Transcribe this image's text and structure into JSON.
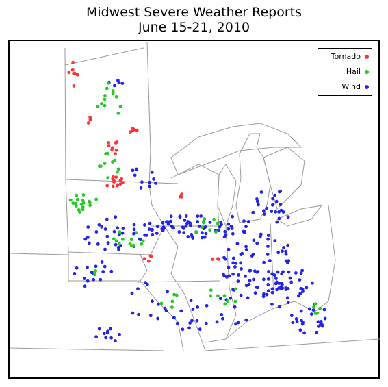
{
  "title": "Midwest Severe Weather Reports",
  "subtitle": "June 15-21, 2010",
  "legend": [
    {
      "label": "Tornado",
      "color": "#ff3333"
    },
    {
      "label": "Hail",
      "color": "#22cc22"
    },
    {
      "label": "Wind",
      "color": "#2222ee"
    }
  ],
  "colors": {
    "border": "#000000",
    "boundaries": "#999999"
  }
}
